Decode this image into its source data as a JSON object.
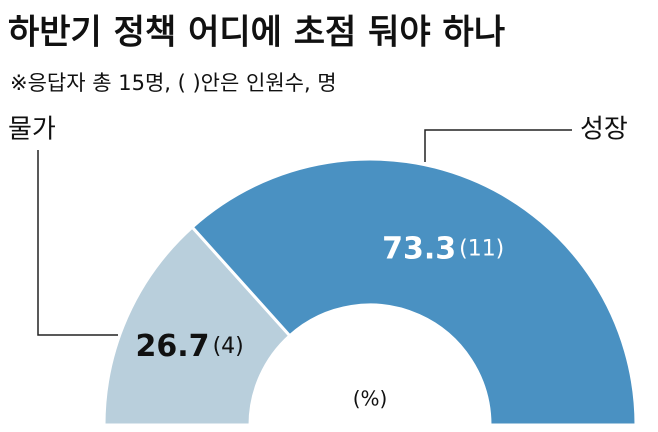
{
  "chart_data": {
    "type": "pie",
    "shape": "half-donut",
    "title": "하반기 정책 어디에 초점 둬야 하나",
    "subtitle": "※응답자 총 15명, (  )안은 인원수, 명",
    "categories": [
      "물가",
      "성장"
    ],
    "values": [
      26.7,
      73.3
    ],
    "count_labels": [
      "(4)",
      "(11)"
    ],
    "colors": [
      "#b9cfdc",
      "#4a91c2"
    ],
    "unit_label": "(%)"
  }
}
